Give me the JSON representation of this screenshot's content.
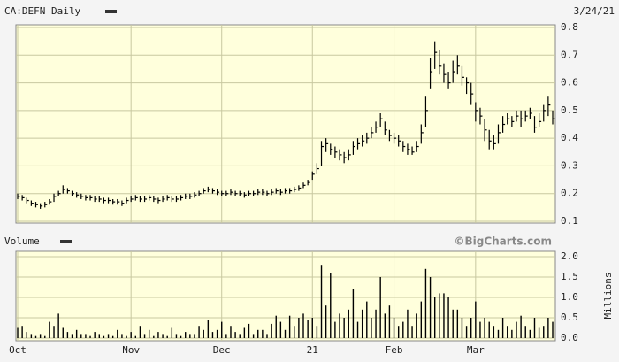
{
  "chart_data": [
    {
      "type": "hlc",
      "title": "CA:DEFN Daily",
      "date": "3/24/21",
      "color": "#000000",
      "ylim": [
        0.1,
        0.8
      ],
      "yticks": [
        0.1,
        0.2,
        0.3,
        0.4,
        0.5,
        0.6,
        0.7,
        0.8
      ],
      "grid": true,
      "values": [
        0.19,
        0.185,
        0.175,
        0.165,
        0.16,
        0.155,
        0.16,
        0.17,
        0.19,
        0.2,
        0.215,
        0.21,
        0.2,
        0.195,
        0.19,
        0.185,
        0.185,
        0.18,
        0.18,
        0.175,
        0.175,
        0.17,
        0.17,
        0.165,
        0.175,
        0.18,
        0.185,
        0.18,
        0.18,
        0.185,
        0.18,
        0.175,
        0.18,
        0.185,
        0.18,
        0.18,
        0.185,
        0.19,
        0.19,
        0.195,
        0.2,
        0.21,
        0.215,
        0.21,
        0.205,
        0.2,
        0.2,
        0.205,
        0.2,
        0.2,
        0.195,
        0.2,
        0.2,
        0.205,
        0.205,
        0.2,
        0.205,
        0.21,
        0.205,
        0.21,
        0.21,
        0.215,
        0.22,
        0.23,
        0.24,
        0.27,
        0.29,
        0.37,
        0.38,
        0.36,
        0.35,
        0.34,
        0.33,
        0.34,
        0.37,
        0.38,
        0.39,
        0.4,
        0.42,
        0.44,
        0.47,
        0.43,
        0.41,
        0.4,
        0.39,
        0.37,
        0.36,
        0.35,
        0.37,
        0.42,
        0.5,
        0.64,
        0.71,
        0.66,
        0.63,
        0.6,
        0.64,
        0.66,
        0.62,
        0.6,
        0.56,
        0.5,
        0.48,
        0.43,
        0.39,
        0.38,
        0.42,
        0.45,
        0.47,
        0.46,
        0.48,
        0.47,
        0.48,
        0.49,
        0.44,
        0.46,
        0.5,
        0.52,
        0.47
      ],
      "high": [
        0.2,
        0.195,
        0.185,
        0.175,
        0.17,
        0.165,
        0.17,
        0.18,
        0.2,
        0.21,
        0.23,
        0.22,
        0.21,
        0.205,
        0.2,
        0.195,
        0.195,
        0.19,
        0.19,
        0.185,
        0.185,
        0.18,
        0.18,
        0.175,
        0.185,
        0.19,
        0.195,
        0.19,
        0.19,
        0.195,
        0.19,
        0.185,
        0.19,
        0.195,
        0.19,
        0.19,
        0.195,
        0.2,
        0.2,
        0.205,
        0.21,
        0.22,
        0.225,
        0.22,
        0.215,
        0.21,
        0.21,
        0.215,
        0.21,
        0.21,
        0.205,
        0.21,
        0.21,
        0.215,
        0.215,
        0.21,
        0.215,
        0.22,
        0.215,
        0.22,
        0.22,
        0.225,
        0.23,
        0.24,
        0.25,
        0.28,
        0.31,
        0.39,
        0.4,
        0.38,
        0.37,
        0.36,
        0.35,
        0.36,
        0.39,
        0.4,
        0.41,
        0.42,
        0.44,
        0.46,
        0.49,
        0.46,
        0.43,
        0.42,
        0.41,
        0.39,
        0.38,
        0.37,
        0.39,
        0.45,
        0.55,
        0.69,
        0.75,
        0.72,
        0.67,
        0.64,
        0.68,
        0.7,
        0.66,
        0.62,
        0.6,
        0.53,
        0.51,
        0.47,
        0.43,
        0.41,
        0.45,
        0.48,
        0.49,
        0.48,
        0.5,
        0.5,
        0.5,
        0.51,
        0.48,
        0.49,
        0.52,
        0.55,
        0.5
      ],
      "low": [
        0.18,
        0.175,
        0.165,
        0.155,
        0.15,
        0.145,
        0.15,
        0.16,
        0.17,
        0.19,
        0.2,
        0.2,
        0.19,
        0.185,
        0.18,
        0.175,
        0.175,
        0.17,
        0.17,
        0.165,
        0.165,
        0.16,
        0.16,
        0.155,
        0.165,
        0.17,
        0.175,
        0.17,
        0.17,
        0.175,
        0.17,
        0.165,
        0.17,
        0.175,
        0.17,
        0.17,
        0.175,
        0.18,
        0.18,
        0.185,
        0.19,
        0.2,
        0.205,
        0.2,
        0.195,
        0.19,
        0.19,
        0.195,
        0.19,
        0.19,
        0.185,
        0.19,
        0.19,
        0.195,
        0.195,
        0.19,
        0.195,
        0.2,
        0.195,
        0.2,
        0.2,
        0.205,
        0.21,
        0.22,
        0.23,
        0.25,
        0.27,
        0.3,
        0.35,
        0.34,
        0.33,
        0.32,
        0.31,
        0.32,
        0.34,
        0.36,
        0.37,
        0.38,
        0.4,
        0.42,
        0.44,
        0.41,
        0.39,
        0.38,
        0.37,
        0.35,
        0.34,
        0.34,
        0.35,
        0.38,
        0.44,
        0.58,
        0.65,
        0.63,
        0.6,
        0.58,
        0.6,
        0.63,
        0.59,
        0.56,
        0.52,
        0.46,
        0.45,
        0.39,
        0.36,
        0.36,
        0.38,
        0.42,
        0.45,
        0.44,
        0.46,
        0.44,
        0.46,
        0.47,
        0.42,
        0.44,
        0.46,
        0.48,
        0.45
      ]
    },
    {
      "type": "bar",
      "title": "Volume",
      "source": "©BigCharts.com",
      "y_label": "Millions",
      "color": "#000000",
      "ylim": [
        0,
        2
      ],
      "yticks": [
        {
          "value": 0,
          "label": "0.0"
        },
        0.5,
        {
          "value": 1,
          "label": "1.0"
        },
        1.5,
        {
          "value": 2,
          "label": "2.0"
        }
      ],
      "grid": true,
      "categories": [
        "Oct",
        null,
        null,
        null,
        null,
        null,
        null,
        null,
        null,
        null,
        null,
        null,
        null,
        null,
        null,
        null,
        null,
        null,
        null,
        null,
        null,
        null,
        null,
        null,
        null,
        "Nov",
        null,
        null,
        null,
        null,
        null,
        null,
        null,
        null,
        null,
        null,
        null,
        null,
        null,
        null,
        null,
        null,
        null,
        null,
        null,
        "Dec",
        null,
        null,
        null,
        null,
        null,
        null,
        null,
        null,
        null,
        null,
        null,
        null,
        null,
        null,
        null,
        null,
        null,
        null,
        null,
        "21",
        null,
        null,
        null,
        null,
        null,
        null,
        null,
        null,
        null,
        null,
        null,
        null,
        null,
        null,
        null,
        null,
        null,
        "Feb",
        null,
        null,
        null,
        null,
        null,
        null,
        null,
        null,
        null,
        null,
        null,
        null,
        null,
        null,
        null,
        null,
        null,
        "Mar",
        null,
        null,
        null,
        null,
        null,
        null,
        null,
        null,
        null,
        null,
        null,
        null,
        null,
        null,
        null,
        null,
        null
      ],
      "values": [
        0.25,
        0.3,
        0.15,
        0.1,
        0.05,
        0.1,
        0.05,
        0.4,
        0.3,
        0.6,
        0.25,
        0.15,
        0.1,
        0.2,
        0.1,
        0.1,
        0.05,
        0.15,
        0.1,
        0.05,
        0.1,
        0.05,
        0.2,
        0.1,
        0.05,
        0.15,
        0.05,
        0.3,
        0.1,
        0.2,
        0.05,
        0.15,
        0.1,
        0.05,
        0.25,
        0.1,
        0.05,
        0.15,
        0.1,
        0.1,
        0.3,
        0.2,
        0.45,
        0.15,
        0.2,
        0.4,
        0.1,
        0.3,
        0.15,
        0.1,
        0.25,
        0.35,
        0.1,
        0.2,
        0.2,
        0.1,
        0.35,
        0.55,
        0.4,
        0.2,
        0.55,
        0.3,
        0.5,
        0.6,
        0.45,
        0.5,
        0.3,
        1.8,
        0.8,
        1.6,
        0.4,
        0.6,
        0.5,
        0.7,
        1.2,
        0.4,
        0.7,
        0.9,
        0.5,
        0.7,
        1.5,
        0.6,
        0.8,
        0.5,
        0.3,
        0.4,
        0.7,
        0.3,
        0.6,
        0.9,
        1.7,
        1.5,
        1.0,
        1.1,
        1.1,
        1.0,
        0.7,
        0.7,
        0.5,
        0.3,
        0.5,
        0.9,
        0.4,
        0.5,
        0.4,
        0.3,
        0.2,
        0.5,
        0.3,
        0.2,
        0.4,
        0.55,
        0.3,
        0.2,
        0.5,
        0.25,
        0.3,
        0.5,
        0.4
      ]
    }
  ]
}
